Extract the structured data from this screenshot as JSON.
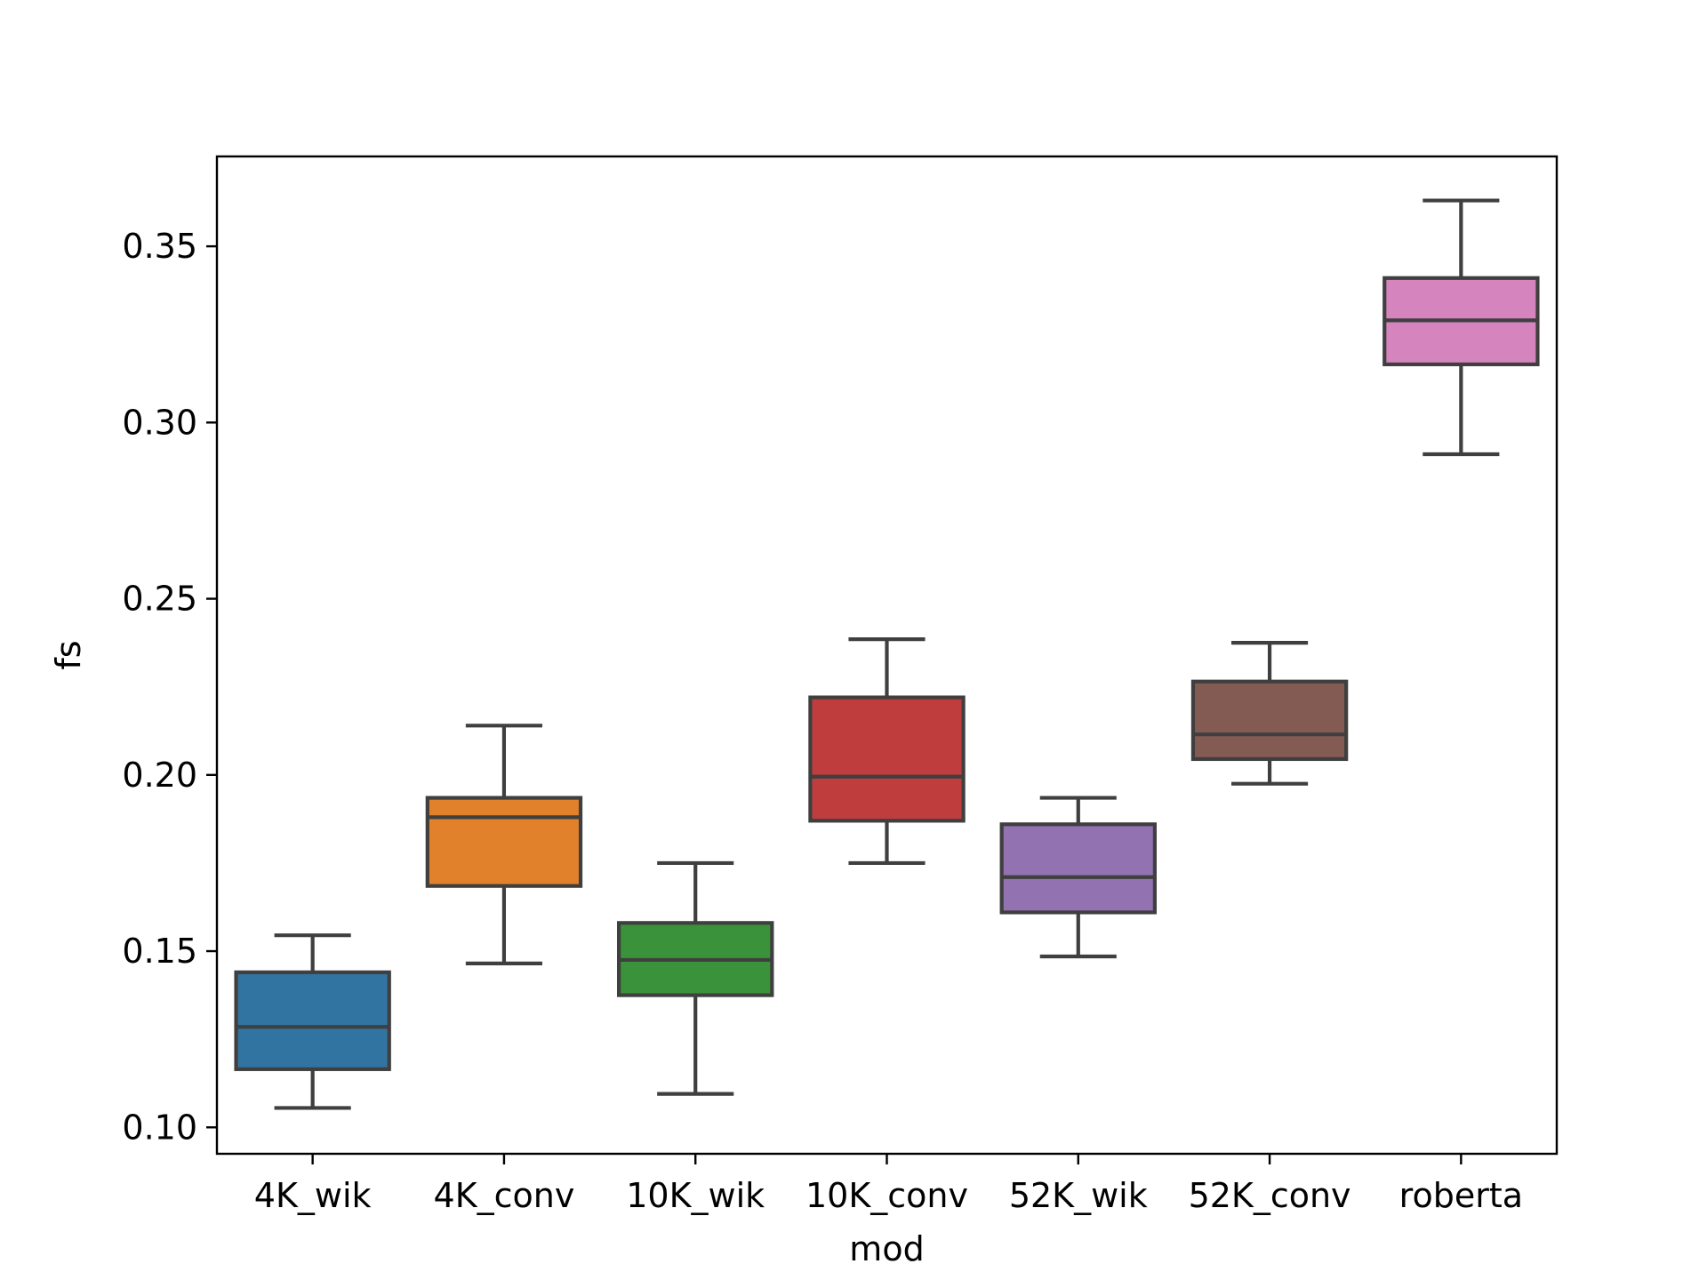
{
  "chart_data": {
    "type": "box",
    "title": "",
    "xlabel": "mod",
    "ylabel": "fs",
    "ylim": [
      0.0925,
      0.3755
    ],
    "yticks": [
      0.1,
      0.15,
      0.2,
      0.25,
      0.3,
      0.35
    ],
    "ytick_labels": [
      "0.10",
      "0.15",
      "0.20",
      "0.25",
      "0.30",
      "0.35"
    ],
    "grid": false,
    "categories": [
      "4K_wik",
      "4K_conv",
      "10K_wik",
      "10K_conv",
      "52K_wik",
      "52K_conv",
      "roberta"
    ],
    "boxes": [
      {
        "whisker_low": 0.1055,
        "q1": 0.1165,
        "median": 0.1285,
        "q3": 0.144,
        "whisker_high": 0.1545,
        "color": "#3274a1"
      },
      {
        "whisker_low": 0.1465,
        "q1": 0.1685,
        "median": 0.188,
        "q3": 0.1935,
        "whisker_high": 0.214,
        "color": "#e1812c"
      },
      {
        "whisker_low": 0.1095,
        "q1": 0.1375,
        "median": 0.1475,
        "q3": 0.158,
        "whisker_high": 0.175,
        "color": "#3a923a"
      },
      {
        "whisker_low": 0.175,
        "q1": 0.187,
        "median": 0.1995,
        "q3": 0.222,
        "whisker_high": 0.2385,
        "color": "#c03d3e"
      },
      {
        "whisker_low": 0.1485,
        "q1": 0.161,
        "median": 0.171,
        "q3": 0.186,
        "whisker_high": 0.1935,
        "color": "#9372b2"
      },
      {
        "whisker_low": 0.1975,
        "q1": 0.2045,
        "median": 0.2115,
        "q3": 0.2265,
        "whisker_high": 0.2375,
        "color": "#845b53"
      },
      {
        "whisker_low": 0.291,
        "q1": 0.3165,
        "median": 0.329,
        "q3": 0.341,
        "whisker_high": 0.363,
        "color": "#d684bd"
      }
    ],
    "line_color": "#3f3f3f"
  }
}
